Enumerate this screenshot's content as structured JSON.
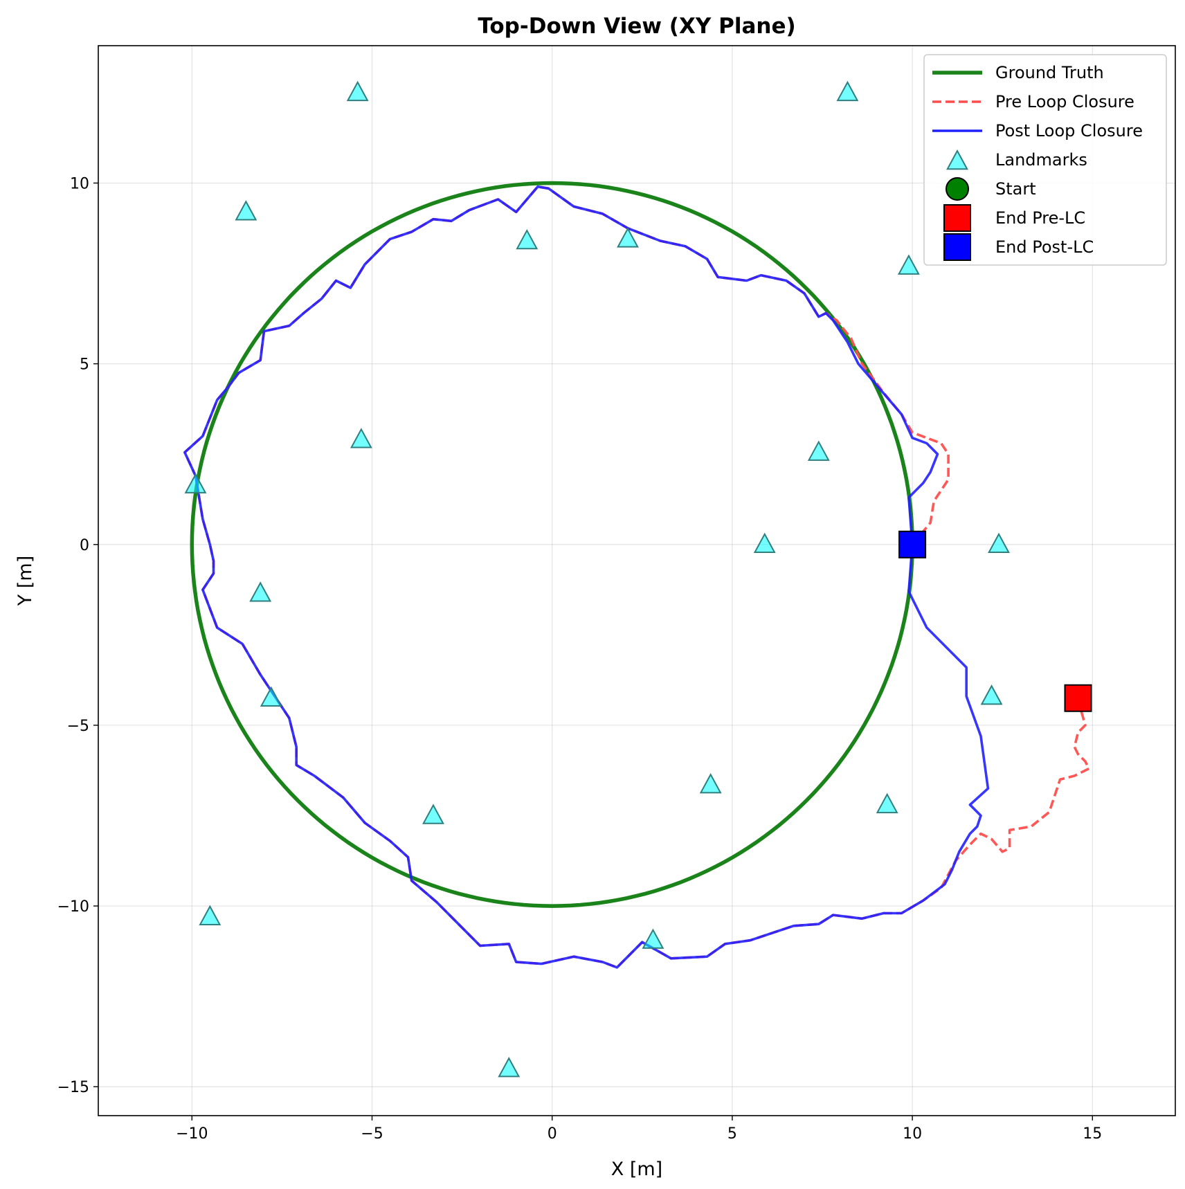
{
  "chart_data": {
    "type": "line",
    "title": "Top-Down View (XY Plane)",
    "xlabel": "X [m]",
    "ylabel": "Y [m]",
    "xlim": [
      -12.6,
      17.3
    ],
    "ylim": [
      -15.8,
      13.8
    ],
    "xticks": [
      -10,
      -5,
      0,
      5,
      10,
      15
    ],
    "yticks": [
      -15,
      -10,
      -5,
      0,
      5,
      10
    ],
    "xtick_labels": [
      "−10",
      "−5",
      "0",
      "5",
      "10",
      "15"
    ],
    "ytick_labels": [
      "−15",
      "−10",
      "−5",
      "0",
      "5",
      "10"
    ],
    "grid": true,
    "legend_position": "top-right",
    "series": [
      {
        "name": "Ground Truth",
        "kind": "line",
        "color": "#1a841a",
        "style": "solid",
        "shape": "circle",
        "center": [
          0,
          0
        ],
        "radius": 10
      },
      {
        "name": "Pre Loop Closure",
        "kind": "line",
        "color": "#ff4d4d",
        "style": "dashed",
        "points": [
          [
            10.0,
            0.0
          ],
          [
            10.5,
            0.6
          ],
          [
            10.6,
            1.2
          ],
          [
            11.0,
            1.8
          ],
          [
            11.0,
            2.5
          ],
          [
            10.8,
            2.8
          ],
          [
            10.4,
            2.95
          ],
          [
            10.0,
            3.1
          ],
          [
            9.7,
            3.6
          ],
          [
            9.2,
            4.2
          ],
          [
            8.6,
            5.0
          ],
          [
            8.3,
            5.7
          ],
          [
            7.9,
            6.2
          ],
          [
            7.6,
            6.4
          ],
          [
            7.4,
            6.3
          ],
          [
            7.0,
            6.95
          ],
          [
            6.5,
            7.3
          ],
          [
            5.8,
            7.45
          ],
          [
            5.4,
            7.3
          ],
          [
            4.6,
            7.4
          ],
          [
            4.3,
            7.9
          ],
          [
            3.7,
            8.25
          ],
          [
            3.0,
            8.4
          ],
          [
            2.1,
            8.75
          ],
          [
            1.4,
            9.15
          ],
          [
            0.6,
            9.35
          ],
          [
            -0.1,
            9.85
          ],
          [
            -0.4,
            9.9
          ],
          [
            -1.0,
            9.2
          ],
          [
            -1.5,
            9.55
          ],
          [
            -2.3,
            9.25
          ],
          [
            -2.8,
            8.95
          ],
          [
            -3.3,
            9.0
          ],
          [
            -3.9,
            8.65
          ],
          [
            -4.5,
            8.45
          ],
          [
            -5.2,
            7.75
          ],
          [
            -5.6,
            7.1
          ],
          [
            -6.0,
            7.3
          ],
          [
            -6.4,
            6.8
          ],
          [
            -6.9,
            6.4
          ],
          [
            -7.3,
            6.05
          ],
          [
            -8.0,
            5.9
          ],
          [
            -8.1,
            5.1
          ],
          [
            -8.7,
            4.75
          ],
          [
            -9.0,
            4.35
          ],
          [
            -9.3,
            4.0
          ],
          [
            -9.7,
            3.0
          ],
          [
            -10.2,
            2.55
          ],
          [
            -9.9,
            1.9
          ],
          [
            -9.7,
            0.7
          ],
          [
            -9.5,
            0.0
          ],
          [
            -9.4,
            -0.45
          ],
          [
            -9.4,
            -0.8
          ],
          [
            -9.7,
            -1.25
          ],
          [
            -9.3,
            -2.3
          ],
          [
            -8.6,
            -2.75
          ],
          [
            -8.1,
            -3.6
          ],
          [
            -7.7,
            -4.2
          ],
          [
            -7.3,
            -4.8
          ],
          [
            -7.1,
            -5.6
          ],
          [
            -7.1,
            -6.1
          ],
          [
            -6.6,
            -6.4
          ],
          [
            -5.8,
            -7.0
          ],
          [
            -5.2,
            -7.7
          ],
          [
            -4.5,
            -8.2
          ],
          [
            -4.0,
            -8.65
          ],
          [
            -3.9,
            -9.3
          ],
          [
            -3.2,
            -9.9
          ],
          [
            -2.6,
            -10.5
          ],
          [
            -2.0,
            -11.1
          ],
          [
            -1.2,
            -11.05
          ],
          [
            -1.0,
            -11.55
          ],
          [
            -0.3,
            -11.6
          ],
          [
            0.6,
            -11.4
          ],
          [
            1.4,
            -11.55
          ],
          [
            1.8,
            -11.7
          ],
          [
            2.5,
            -11.0
          ],
          [
            3.3,
            -11.45
          ],
          [
            4.3,
            -11.4
          ],
          [
            4.8,
            -11.05
          ],
          [
            5.5,
            -10.95
          ],
          [
            6.7,
            -10.55
          ],
          [
            7.4,
            -10.5
          ],
          [
            7.8,
            -10.25
          ],
          [
            8.2,
            -10.3
          ],
          [
            8.6,
            -10.35
          ],
          [
            9.2,
            -10.2
          ],
          [
            9.7,
            -10.2
          ],
          [
            10.3,
            -9.85
          ],
          [
            10.8,
            -9.5
          ],
          [
            11.2,
            -8.75
          ],
          [
            11.6,
            -8.3
          ],
          [
            11.9,
            -8.0
          ],
          [
            12.2,
            -8.15
          ],
          [
            12.5,
            -8.5
          ],
          [
            12.7,
            -8.4
          ],
          [
            12.7,
            -7.9
          ],
          [
            13.3,
            -7.8
          ],
          [
            13.8,
            -7.4
          ],
          [
            14.1,
            -6.5
          ],
          [
            14.5,
            -6.4
          ],
          [
            14.9,
            -6.2
          ],
          [
            14.8,
            -6.0
          ],
          [
            14.6,
            -5.8
          ],
          [
            14.5,
            -5.6
          ],
          [
            14.6,
            -5.2
          ],
          [
            14.8,
            -5.0
          ],
          [
            14.6,
            -4.3
          ]
        ]
      },
      {
        "name": "Post Loop Closure",
        "kind": "line",
        "color": "#2020ff",
        "style": "solid",
        "points": [
          [
            10.0,
            0.0
          ],
          [
            9.9,
            1.3
          ],
          [
            10.3,
            1.7
          ],
          [
            10.5,
            2.0
          ],
          [
            10.7,
            2.5
          ],
          [
            10.4,
            2.8
          ],
          [
            10.0,
            2.95
          ],
          [
            9.7,
            3.6
          ],
          [
            9.1,
            4.3
          ],
          [
            8.5,
            5.0
          ],
          [
            8.2,
            5.6
          ],
          [
            7.8,
            6.2
          ],
          [
            7.6,
            6.4
          ],
          [
            7.4,
            6.3
          ],
          [
            7.0,
            6.95
          ],
          [
            6.5,
            7.3
          ],
          [
            5.8,
            7.45
          ],
          [
            5.4,
            7.3
          ],
          [
            4.6,
            7.4
          ],
          [
            4.3,
            7.9
          ],
          [
            3.7,
            8.25
          ],
          [
            3.0,
            8.4
          ],
          [
            2.1,
            8.75
          ],
          [
            1.4,
            9.15
          ],
          [
            0.6,
            9.35
          ],
          [
            -0.1,
            9.85
          ],
          [
            -0.4,
            9.9
          ],
          [
            -1.0,
            9.2
          ],
          [
            -1.5,
            9.55
          ],
          [
            -2.3,
            9.25
          ],
          [
            -2.8,
            8.95
          ],
          [
            -3.3,
            9.0
          ],
          [
            -3.9,
            8.65
          ],
          [
            -4.5,
            8.45
          ],
          [
            -5.2,
            7.75
          ],
          [
            -5.6,
            7.1
          ],
          [
            -6.0,
            7.3
          ],
          [
            -6.4,
            6.8
          ],
          [
            -6.9,
            6.4
          ],
          [
            -7.3,
            6.05
          ],
          [
            -8.0,
            5.9
          ],
          [
            -8.1,
            5.1
          ],
          [
            -8.7,
            4.75
          ],
          [
            -9.0,
            4.35
          ],
          [
            -9.3,
            4.0
          ],
          [
            -9.7,
            3.0
          ],
          [
            -10.2,
            2.55
          ],
          [
            -9.9,
            1.9
          ],
          [
            -9.7,
            0.7
          ],
          [
            -9.5,
            0.0
          ],
          [
            -9.4,
            -0.45
          ],
          [
            -9.4,
            -0.8
          ],
          [
            -9.7,
            -1.25
          ],
          [
            -9.3,
            -2.3
          ],
          [
            -8.6,
            -2.75
          ],
          [
            -8.1,
            -3.6
          ],
          [
            -7.7,
            -4.2
          ],
          [
            -7.3,
            -4.8
          ],
          [
            -7.1,
            -5.6
          ],
          [
            -7.1,
            -6.1
          ],
          [
            -6.6,
            -6.4
          ],
          [
            -5.8,
            -7.0
          ],
          [
            -5.2,
            -7.7
          ],
          [
            -4.5,
            -8.2
          ],
          [
            -4.0,
            -8.65
          ],
          [
            -3.9,
            -9.3
          ],
          [
            -3.2,
            -9.9
          ],
          [
            -2.6,
            -10.5
          ],
          [
            -2.0,
            -11.1
          ],
          [
            -1.2,
            -11.05
          ],
          [
            -1.0,
            -11.55
          ],
          [
            -0.3,
            -11.6
          ],
          [
            0.6,
            -11.4
          ],
          [
            1.4,
            -11.55
          ],
          [
            1.8,
            -11.7
          ],
          [
            2.5,
            -11.0
          ],
          [
            3.3,
            -11.45
          ],
          [
            4.3,
            -11.4
          ],
          [
            4.8,
            -11.05
          ],
          [
            5.5,
            -10.95
          ],
          [
            6.7,
            -10.55
          ],
          [
            7.4,
            -10.5
          ],
          [
            7.8,
            -10.25
          ],
          [
            8.2,
            -10.3
          ],
          [
            8.6,
            -10.35
          ],
          [
            9.2,
            -10.2
          ],
          [
            9.7,
            -10.2
          ],
          [
            10.3,
            -9.85
          ],
          [
            10.9,
            -9.4
          ],
          [
            11.1,
            -9.0
          ],
          [
            11.3,
            -8.5
          ],
          [
            11.6,
            -8.0
          ],
          [
            11.8,
            -7.8
          ],
          [
            11.9,
            -7.5
          ],
          [
            11.6,
            -7.2
          ],
          [
            12.1,
            -6.75
          ],
          [
            11.9,
            -5.3
          ],
          [
            11.5,
            -4.2
          ],
          [
            11.5,
            -3.4
          ],
          [
            10.4,
            -2.3
          ],
          [
            9.9,
            -1.3
          ],
          [
            10.0,
            0.0
          ]
        ]
      },
      {
        "name": "Landmarks",
        "kind": "scatter",
        "marker": "triangle",
        "color": "#00ffff",
        "edge_color": "#2f7f7f",
        "points": [
          [
            -5.4,
            12.5
          ],
          [
            8.2,
            12.5
          ],
          [
            -8.5,
            9.2
          ],
          [
            -0.7,
            8.4
          ],
          [
            2.1,
            8.45
          ],
          [
            9.9,
            7.7
          ],
          [
            -5.3,
            2.9
          ],
          [
            7.4,
            2.55
          ],
          [
            -9.9,
            1.65
          ],
          [
            5.9,
            0.0
          ],
          [
            12.4,
            0.0
          ],
          [
            -8.1,
            -1.35
          ],
          [
            -7.8,
            -4.25
          ],
          [
            12.2,
            -4.2
          ],
          [
            4.4,
            -6.65
          ],
          [
            -3.3,
            -7.5
          ],
          [
            9.3,
            -7.2
          ],
          [
            -9.5,
            -10.3
          ],
          [
            2.8,
            -10.95
          ],
          [
            -1.2,
            -14.5
          ]
        ]
      },
      {
        "name": "Start",
        "kind": "marker",
        "marker": "circle",
        "color": "#008000",
        "points": [
          [
            10.0,
            0.0
          ]
        ]
      },
      {
        "name": "End Pre-LC",
        "kind": "marker",
        "marker": "square",
        "color": "#ff0000",
        "points": [
          [
            14.6,
            -4.25
          ]
        ]
      },
      {
        "name": "End Post-LC",
        "kind": "marker",
        "marker": "square",
        "color": "#0000ff",
        "points": [
          [
            10.0,
            0.0
          ]
        ]
      }
    ]
  }
}
